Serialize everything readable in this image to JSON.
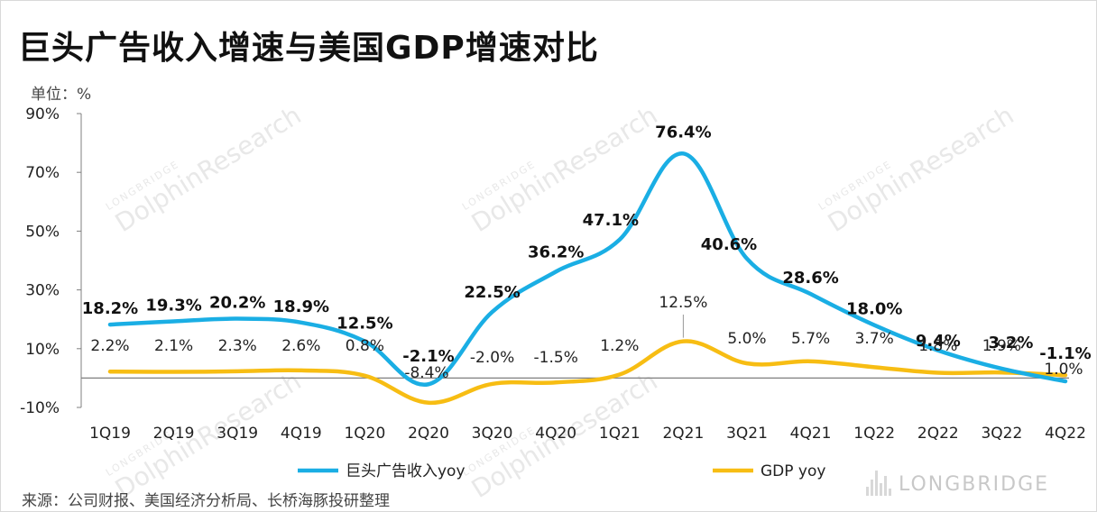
{
  "title": "巨头广告收入增速与美国GDP增速对比",
  "unit_label": "单位：%",
  "source": "来源：公司财报、美国经济分析局、长桥海豚投研整理",
  "brand": "LONGBRIDGE",
  "watermark": {
    "small": "LONGBRIDGE",
    "big": "DolphinResearch"
  },
  "colors": {
    "series1": "#1aaee4",
    "series2": "#f7bd13",
    "axis": "#7f7f7f"
  },
  "chart_data": {
    "type": "line",
    "title": "巨头广告收入增速与美国GDP增速对比",
    "xlabel": "",
    "ylabel": "单位：%",
    "ylim": [
      -10,
      90
    ],
    "yticks": [
      -10,
      10,
      30,
      50,
      70,
      90
    ],
    "ytick_labels": [
      "-10%",
      "10%",
      "30%",
      "50%",
      "70%",
      "90%"
    ],
    "grid": false,
    "legend_position": "bottom",
    "categories": [
      "1Q19",
      "2Q19",
      "3Q19",
      "4Q19",
      "1Q20",
      "2Q20",
      "3Q20",
      "4Q20",
      "1Q21",
      "2Q21",
      "3Q21",
      "4Q21",
      "1Q22",
      "2Q22",
      "3Q22",
      "4Q22"
    ],
    "series": [
      {
        "name": "巨头广告收入yoy",
        "values": [
          18.2,
          19.3,
          20.2,
          18.9,
          12.5,
          -2.1,
          22.5,
          36.2,
          47.1,
          76.4,
          40.6,
          28.6,
          18.0,
          9.4,
          3.2,
          -1.1
        ],
        "labels": [
          "18.2%",
          "19.3%",
          "20.2%",
          "18.9%",
          "12.5%",
          "-2.1%",
          "22.5%",
          "36.2%",
          "47.1%",
          "76.4%",
          "40.6%",
          "28.6%",
          "18.0%",
          "9.4%",
          "3.2%",
          "-1.1%"
        ]
      },
      {
        "name": "GDP yoy",
        "values": [
          2.2,
          2.1,
          2.3,
          2.6,
          0.8,
          -8.4,
          -2.0,
          -1.5,
          1.2,
          12.5,
          5.0,
          5.7,
          3.7,
          1.8,
          1.9,
          1.0
        ],
        "labels": [
          "2.2%",
          "2.1%",
          "2.3%",
          "2.6%",
          "0.8%",
          "-8.4%",
          "-2.0%",
          "-1.5%",
          "1.2%",
          "12.5%",
          "5.0%",
          "5.7%",
          "3.7%",
          "1.8%",
          "1.9%",
          "1.0%"
        ]
      }
    ]
  }
}
